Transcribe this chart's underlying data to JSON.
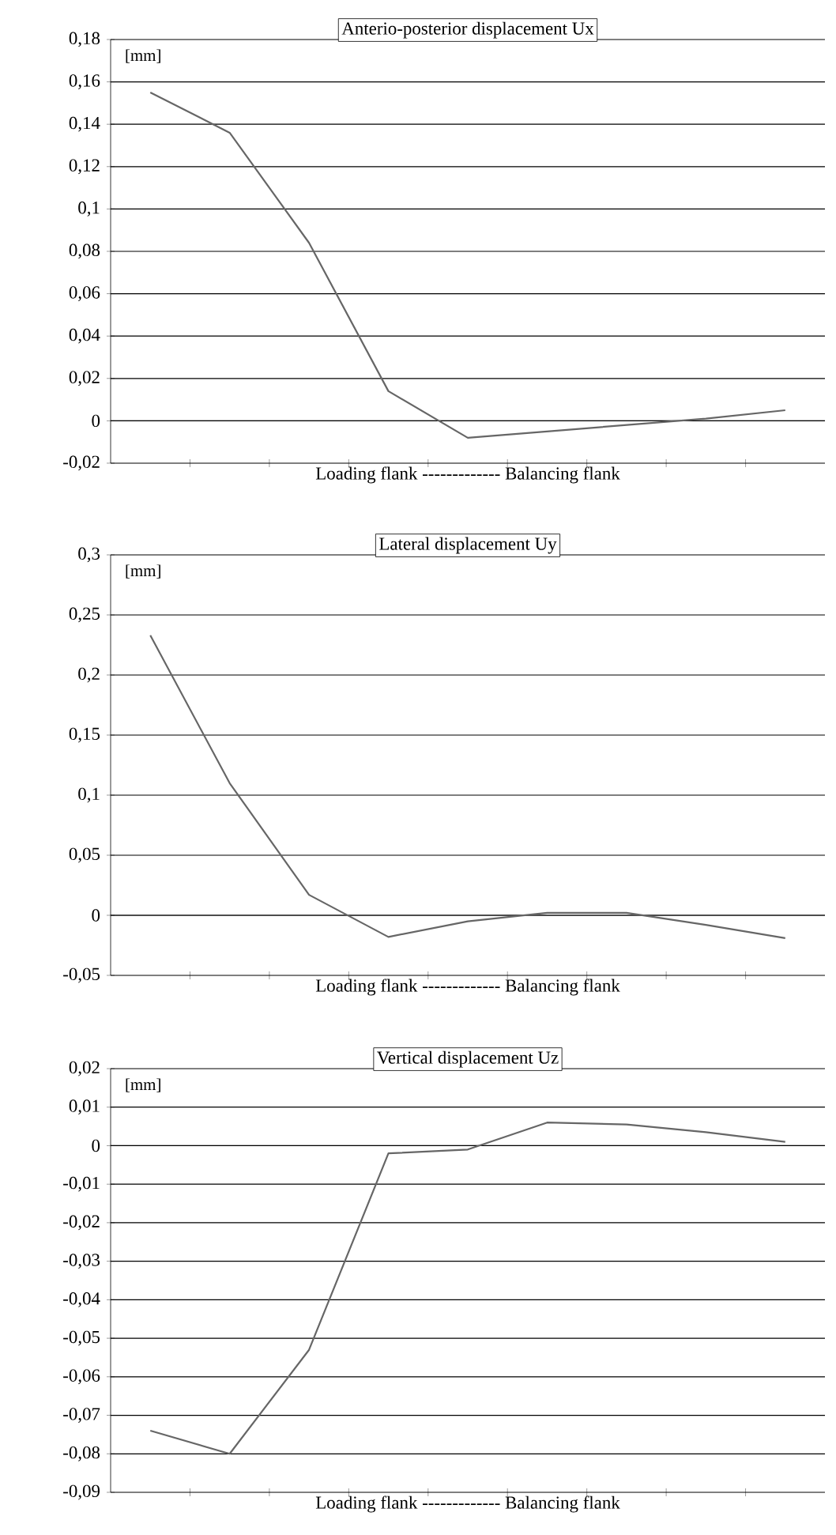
{
  "chart_data": [
    {
      "type": "line",
      "title": "Anterio-posterior displacement Ux",
      "ylabel": "[mm]",
      "xlabel": "Loading flank  -------------  Balancing flank",
      "categories": [
        null,
        null,
        null,
        null,
        null,
        null,
        null,
        null,
        null
      ],
      "values": [
        0.155,
        0.136,
        0.084,
        0.014,
        -0.008,
        -0.005,
        -0.002,
        0.001,
        0.005
      ],
      "color": "#666666",
      "ylim": [
        -0.02,
        0.18
      ],
      "yticks": [
        {
          "value": -0.02,
          "label": "-0,02"
        },
        {
          "value": 0,
          "label": "0"
        },
        {
          "value": 0.02,
          "label": "0,02"
        },
        {
          "value": 0.04,
          "label": "0,04"
        },
        {
          "value": 0.06,
          "label": "0,06"
        },
        {
          "value": 0.08,
          "label": "0,08"
        },
        {
          "value": 0.1,
          "label": "0,1"
        },
        {
          "value": 0.12,
          "label": "0,12"
        },
        {
          "value": 0.14,
          "label": "0,14"
        },
        {
          "value": 0.16,
          "label": "0,16"
        },
        {
          "value": 0.18,
          "label": "0,18"
        }
      ],
      "grid": "y",
      "tick_labels": "y"
    },
    {
      "type": "line",
      "title": "Lateral displacement Uy",
      "ylabel": "[mm]",
      "xlabel": "Loading flank  -------------  Balancing flank",
      "categories": [
        null,
        null,
        null,
        null,
        null,
        null,
        null,
        null,
        null
      ],
      "values": [
        0.233,
        0.11,
        0.017,
        -0.018,
        -0.005,
        0.002,
        0.002,
        -0.008,
        -0.019
      ],
      "color": "#666666",
      "ylim": [
        -0.05,
        0.3
      ],
      "yticks": [
        {
          "value": -0.05,
          "label": "-0,05"
        },
        {
          "value": 0,
          "label": "0"
        },
        {
          "value": 0.05,
          "label": "0,05"
        },
        {
          "value": 0.1,
          "label": "0,1"
        },
        {
          "value": 0.15,
          "label": "0,15"
        },
        {
          "value": 0.2,
          "label": "0,2"
        },
        {
          "value": 0.25,
          "label": "0,25"
        },
        {
          "value": 0.3,
          "label": "0,3"
        }
      ],
      "grid": "y",
      "tick_labels": "y"
    },
    {
      "type": "line",
      "title": "Vertical displacement Uz",
      "ylabel": "[mm]",
      "xlabel": "Loading flank  -------------  Balancing flank",
      "categories": [
        null,
        null,
        null,
        null,
        null,
        null,
        null,
        null,
        null
      ],
      "values": [
        -0.074,
        -0.08,
        -0.053,
        -0.002,
        -0.001,
        0.006,
        0.0055,
        0.0035,
        0.001
      ],
      "color": "#666666",
      "ylim": [
        -0.09,
        0.02
      ],
      "yticks": [
        {
          "value": -0.09,
          "label": "-0,09"
        },
        {
          "value": -0.08,
          "label": "-0,08"
        },
        {
          "value": -0.07,
          "label": "-0,07"
        },
        {
          "value": -0.06,
          "label": "-0,06"
        },
        {
          "value": -0.05,
          "label": "-0,05"
        },
        {
          "value": -0.04,
          "label": "-0,04"
        },
        {
          "value": -0.03,
          "label": "-0,03"
        },
        {
          "value": -0.02,
          "label": "-0,02"
        },
        {
          "value": -0.01,
          "label": "-0,01"
        },
        {
          "value": 0,
          "label": "0"
        },
        {
          "value": 0.01,
          "label": "0,01"
        },
        {
          "value": 0.02,
          "label": "0,02"
        }
      ],
      "grid": "y",
      "tick_labels": "y"
    }
  ]
}
